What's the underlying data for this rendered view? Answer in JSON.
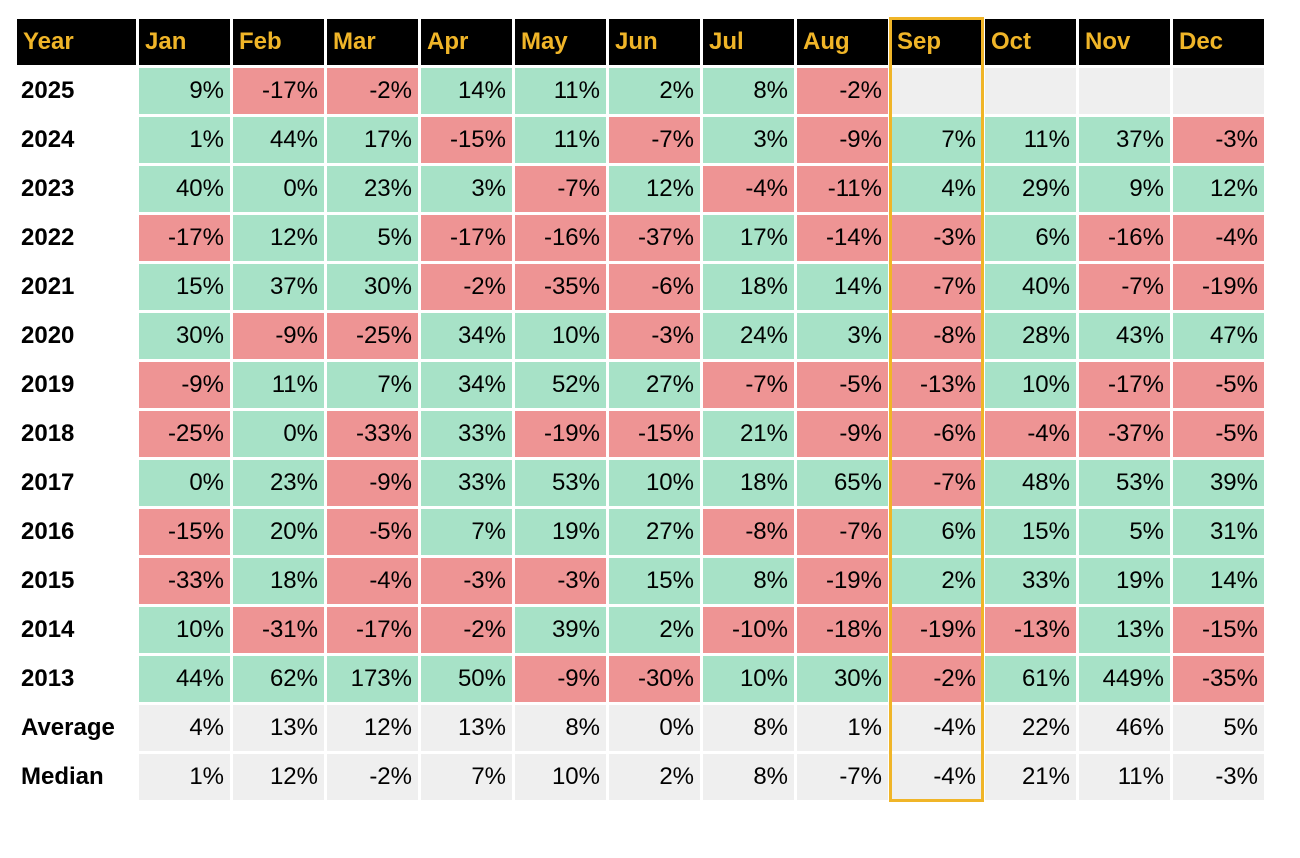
{
  "colors": {
    "header_bg": "#000000",
    "header_text": "#f0b528",
    "positive": "#a7e2c7",
    "negative": "#ee9494",
    "neutral": "#efefef",
    "highlight_border": "#f0b528"
  },
  "chart_data": {
    "type": "table",
    "highlight_column": "Sep",
    "headers": [
      "Year",
      "Jan",
      "Feb",
      "Mar",
      "Apr",
      "May",
      "Jun",
      "Jul",
      "Aug",
      "Sep",
      "Oct",
      "Nov",
      "Dec"
    ],
    "rows": [
      {
        "label": "2025",
        "values": [
          "9%",
          "-17%",
          "-2%",
          "14%",
          "11%",
          "2%",
          "8%",
          "-2%",
          "",
          "",
          "",
          ""
        ]
      },
      {
        "label": "2024",
        "values": [
          "1%",
          "44%",
          "17%",
          "-15%",
          "11%",
          "-7%",
          "3%",
          "-9%",
          "7%",
          "11%",
          "37%",
          "-3%"
        ]
      },
      {
        "label": "2023",
        "values": [
          "40%",
          "0%",
          "23%",
          "3%",
          "-7%",
          "12%",
          "-4%",
          "-11%",
          "4%",
          "29%",
          "9%",
          "12%"
        ]
      },
      {
        "label": "2022",
        "values": [
          "-17%",
          "12%",
          "5%",
          "-17%",
          "-16%",
          "-37%",
          "17%",
          "-14%",
          "-3%",
          "6%",
          "-16%",
          "-4%"
        ]
      },
      {
        "label": "2021",
        "values": [
          "15%",
          "37%",
          "30%",
          "-2%",
          "-35%",
          "-6%",
          "18%",
          "14%",
          "-7%",
          "40%",
          "-7%",
          "-19%"
        ]
      },
      {
        "label": "2020",
        "values": [
          "30%",
          "-9%",
          "-25%",
          "34%",
          "10%",
          "-3%",
          "24%",
          "3%",
          "-8%",
          "28%",
          "43%",
          "47%"
        ]
      },
      {
        "label": "2019",
        "values": [
          "-9%",
          "11%",
          "7%",
          "34%",
          "52%",
          "27%",
          "-7%",
          "-5%",
          "-13%",
          "10%",
          "-17%",
          "-5%"
        ]
      },
      {
        "label": "2018",
        "values": [
          "-25%",
          "0%",
          "-33%",
          "33%",
          "-19%",
          "-15%",
          "21%",
          "-9%",
          "-6%",
          "-4%",
          "-37%",
          "-5%"
        ]
      },
      {
        "label": "2017",
        "values": [
          "0%",
          "23%",
          "-9%",
          "33%",
          "53%",
          "10%",
          "18%",
          "65%",
          "-7%",
          "48%",
          "53%",
          "39%"
        ]
      },
      {
        "label": "2016",
        "values": [
          "-15%",
          "20%",
          "-5%",
          "7%",
          "19%",
          "27%",
          "-8%",
          "-7%",
          "6%",
          "15%",
          "5%",
          "31%"
        ]
      },
      {
        "label": "2015",
        "values": [
          "-33%",
          "18%",
          "-4%",
          "-3%",
          "-3%",
          "15%",
          "8%",
          "-19%",
          "2%",
          "33%",
          "19%",
          "14%"
        ]
      },
      {
        "label": "2014",
        "values": [
          "10%",
          "-31%",
          "-17%",
          "-2%",
          "39%",
          "2%",
          "-10%",
          "-18%",
          "-19%",
          "-13%",
          "13%",
          "-15%"
        ]
      },
      {
        "label": "2013",
        "values": [
          "44%",
          "62%",
          "173%",
          "50%",
          "-9%",
          "-30%",
          "10%",
          "30%",
          "-2%",
          "61%",
          "449%",
          "-35%"
        ]
      }
    ],
    "summary_rows": [
      {
        "label": "Average",
        "values": [
          "4%",
          "13%",
          "12%",
          "13%",
          "8%",
          "0%",
          "8%",
          "1%",
          "-4%",
          "22%",
          "46%",
          "5%"
        ]
      },
      {
        "label": "Median",
        "values": [
          "1%",
          "12%",
          "-2%",
          "7%",
          "10%",
          "2%",
          "8%",
          "-7%",
          "-4%",
          "21%",
          "11%",
          "-3%"
        ]
      }
    ]
  }
}
